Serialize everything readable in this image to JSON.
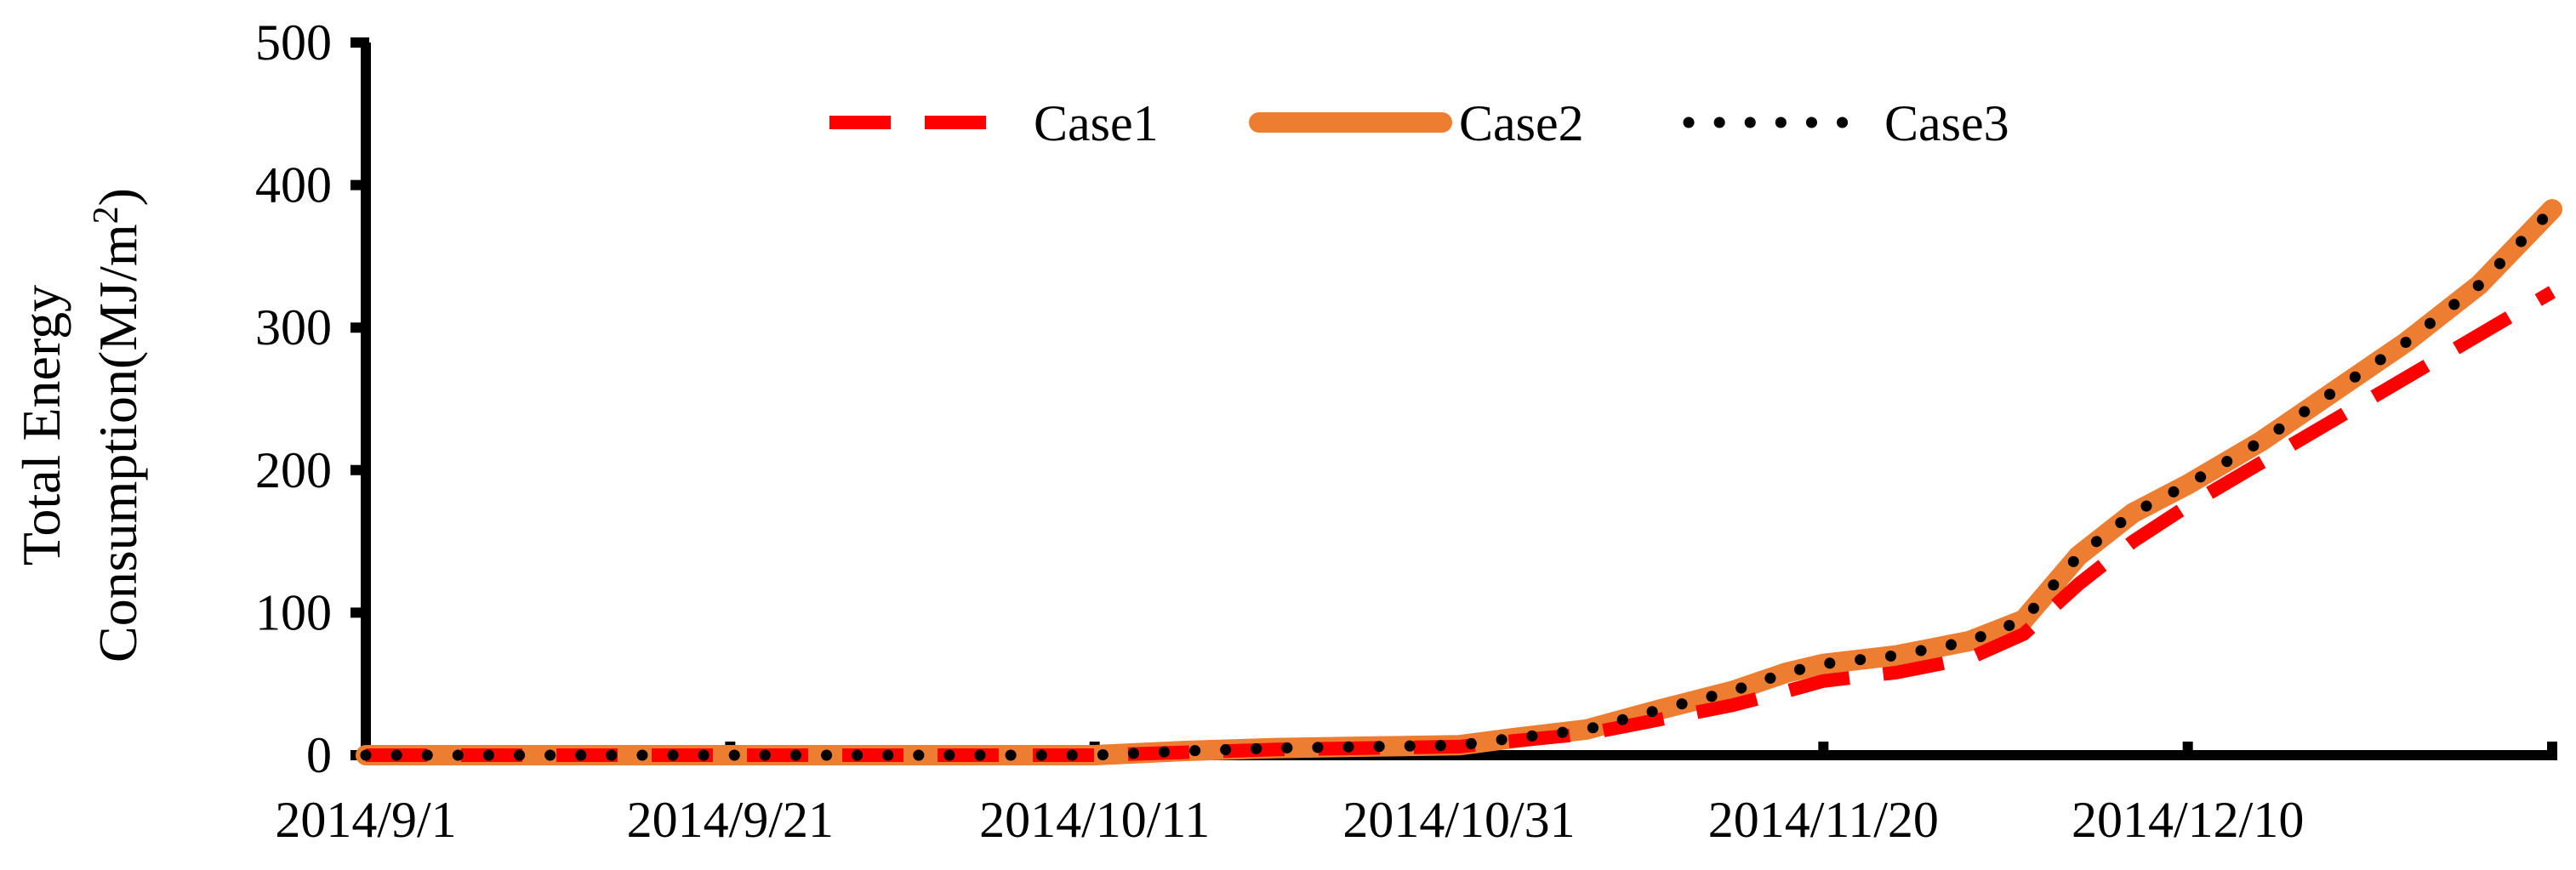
{
  "chart_data": {
    "type": "line",
    "title": "",
    "xlabel": "",
    "ylabel": "Total Energy",
    "ylabel_line2": "Consumption(MJ/m",
    "ylabel_sup": "2",
    "ylabel_close": ")",
    "ylim": [
      0,
      500
    ],
    "yticks": [
      "0",
      "100",
      "200",
      "300",
      "400",
      "500"
    ],
    "xlim": [
      "2014/9/1",
      "2014/12/30"
    ],
    "xticks": [
      "2014/9/1",
      "2014/9/21",
      "2014/10/11",
      "2014/10/31",
      "2014/11/20",
      "2014/12/10"
    ],
    "grid": false,
    "legend_position": "top",
    "x": [
      "2014/9/1",
      "2014/9/6",
      "2014/9/11",
      "2014/9/16",
      "2014/9/21",
      "2014/9/26",
      "2014/10/1",
      "2014/10/6",
      "2014/10/11",
      "2014/10/16",
      "2014/10/21",
      "2014/10/26",
      "2014/10/31",
      "2014/11/3",
      "2014/11/7",
      "2014/11/11",
      "2014/11/15",
      "2014/11/18",
      "2014/11/20",
      "2014/11/24",
      "2014/11/28",
      "2014/12/1",
      "2014/12/4",
      "2014/12/7",
      "2014/12/10",
      "2014/12/14",
      "2014/12/18",
      "2014/12/22",
      "2014/12/26",
      "2014/12/30"
    ],
    "series": [
      {
        "name": "Case1",
        "color": "#ff0000",
        "style": "dashed",
        "values": [
          0,
          0,
          0,
          0,
          0,
          0,
          0,
          0,
          0,
          2,
          4,
          5,
          6,
          10,
          15,
          25,
          35,
          45,
          52,
          58,
          68,
          85,
          120,
          150,
          175,
          205,
          235,
          265,
          295,
          325
        ]
      },
      {
        "name": "Case2",
        "color": "#ed7d31",
        "style": "solid",
        "values": [
          0,
          0,
          0,
          0,
          0,
          0,
          0,
          0,
          0,
          3,
          5,
          6,
          7,
          12,
          18,
          32,
          45,
          58,
          64,
          70,
          80,
          95,
          140,
          170,
          190,
          220,
          255,
          290,
          330,
          383
        ]
      },
      {
        "name": "Case3",
        "color": "#000000",
        "style": "dotted",
        "values": [
          0,
          0,
          0,
          0,
          0,
          0,
          0,
          0,
          0,
          3,
          5,
          6,
          7,
          12,
          18,
          32,
          45,
          58,
          64,
          70,
          80,
          95,
          140,
          170,
          190,
          220,
          255,
          290,
          330,
          383
        ]
      }
    ]
  }
}
